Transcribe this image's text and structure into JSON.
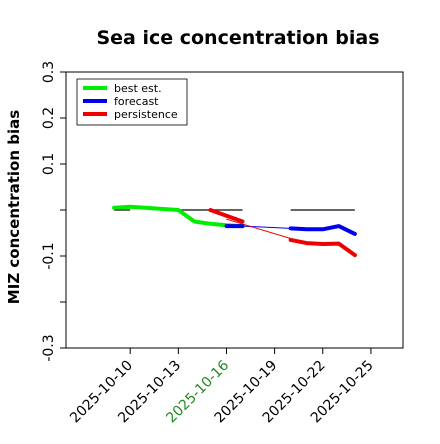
{
  "chart_data": {
    "type": "line",
    "title": "Sea ice concentration bias",
    "xlabel": "",
    "ylabel": "MIZ concentration bias",
    "ylim": [
      -0.3,
      0.3
    ],
    "y_ticks": [
      0.3,
      0.2,
      0.1,
      -0.1,
      -0.3
    ],
    "y_tick_labels": [
      "0.3",
      "0.2",
      "0.1",
      "-0.1",
      "-0.3"
    ],
    "y_unlabeled_ticks": [
      0.0,
      -0.2
    ],
    "xlim": [
      "2025-10-06",
      "2025-10-27"
    ],
    "x_ticks": [
      "2025-10-10",
      "2025-10-13",
      "2025-10-16",
      "2025-10-19",
      "2025-10-22",
      "2025-10-25"
    ],
    "x_tick_labels": [
      "2025-10-10",
      "2025-10-13",
      "2025-10-16",
      "2025-10-19",
      "2025-10-22",
      "2025-10-25"
    ],
    "highlight_tick": "2025-10-16",
    "grid": false,
    "legend_position": "top-left",
    "legend": [
      "best est.",
      "forecast",
      "persistence"
    ],
    "colors": {
      "best_est": "#00ee00",
      "forecast": "#0000ee",
      "persistence": "#ee0000",
      "reference": "#333333",
      "link": "#ee0000",
      "highlight_tick": "#228b22",
      "axes": "#000000"
    },
    "series": [
      {
        "name": "best est.",
        "color_key": "best_est",
        "width": "thick",
        "points": [
          {
            "x": "2025-10-09",
            "y": 0.005
          },
          {
            "x": "2025-10-10",
            "y": 0.007
          },
          {
            "x": "2025-10-13",
            "y": 0.0
          },
          {
            "x": "2025-10-14",
            "y": -0.025
          },
          {
            "x": "2025-10-15",
            "y": -0.03
          },
          {
            "x": "2025-10-16",
            "y": -0.033
          },
          {
            "x": "2025-10-17",
            "y": -0.035
          }
        ]
      },
      {
        "name": "best est. link",
        "color_key": "best_est",
        "width": "thin",
        "points": [
          {
            "x": "2025-10-10",
            "y": 0.007
          },
          {
            "x": "2025-10-13",
            "y": 0.0
          }
        ]
      },
      {
        "name": "forecast",
        "color_key": "forecast",
        "width": "thick",
        "points": [
          {
            "x": "2025-10-16",
            "y": -0.035
          },
          {
            "x": "2025-10-17",
            "y": -0.035
          }
        ]
      },
      {
        "name": "forecast",
        "color_key": "forecast",
        "width": "thick",
        "points": [
          {
            "x": "2025-10-20",
            "y": -0.04
          },
          {
            "x": "2025-10-21",
            "y": -0.042
          },
          {
            "x": "2025-10-22",
            "y": -0.042
          },
          {
            "x": "2025-10-23",
            "y": -0.035
          },
          {
            "x": "2025-10-24",
            "y": -0.052
          }
        ]
      },
      {
        "name": "forecast link",
        "color_key": "forecast",
        "width": "thin",
        "points": [
          {
            "x": "2025-10-17",
            "y": -0.035
          },
          {
            "x": "2025-10-20",
            "y": -0.04
          }
        ]
      },
      {
        "name": "persistence",
        "color_key": "persistence",
        "width": "thick",
        "points": [
          {
            "x": "2025-10-15",
            "y": 0.0
          },
          {
            "x": "2025-10-17",
            "y": -0.025
          }
        ]
      },
      {
        "name": "persistence",
        "color_key": "persistence",
        "width": "thick",
        "points": [
          {
            "x": "2025-10-20",
            "y": -0.065
          },
          {
            "x": "2025-10-21",
            "y": -0.072
          },
          {
            "x": "2025-10-22",
            "y": -0.074
          },
          {
            "x": "2025-10-23",
            "y": -0.073
          },
          {
            "x": "2025-10-24",
            "y": -0.098
          }
        ]
      },
      {
        "name": "persistence link",
        "color_key": "link",
        "width": "thin",
        "points": [
          {
            "x": "2025-10-16",
            "y": -0.02
          },
          {
            "x": "2025-10-20",
            "y": -0.062
          }
        ]
      }
    ],
    "reference_segments": [
      {
        "x": [
          "2025-10-09",
          "2025-10-10"
        ],
        "y": 0.0
      },
      {
        "x": [
          "2025-10-13",
          "2025-10-17"
        ],
        "y": 0.0
      },
      {
        "x": [
          "2025-10-20",
          "2025-10-24"
        ],
        "y": 0.0
      }
    ]
  }
}
